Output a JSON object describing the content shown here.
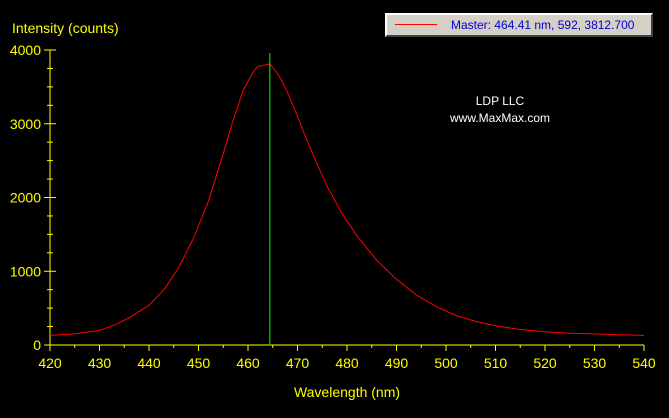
{
  "chart_data": {
    "type": "line",
    "title": "",
    "xlabel": "Wavelength (nm)",
    "ylabel": "Intensity (counts)",
    "xlim": [
      420,
      540
    ],
    "ylim": [
      0,
      4000
    ],
    "x_ticks": [
      420,
      430,
      440,
      450,
      460,
      470,
      480,
      490,
      500,
      510,
      520,
      530,
      540
    ],
    "y_ticks": [
      0,
      1000,
      2000,
      3000,
      4000
    ],
    "grid": false,
    "series": [
      {
        "name": "Master",
        "color": "#FF0000",
        "x": [
          420,
          425,
          430,
          433,
          436,
          440,
          443,
          446,
          449,
          452,
          455,
          457,
          459,
          461,
          462,
          463,
          464.41,
          465,
          466,
          467,
          468,
          470,
          472,
          474,
          476,
          479,
          482,
          486,
          490,
          494,
          498,
          502,
          506,
          510,
          515,
          520,
          525,
          530,
          535,
          540
        ],
        "y": [
          130,
          150,
          200,
          270,
          370,
          540,
          750,
          1050,
          1450,
          1950,
          2600,
          3050,
          3450,
          3700,
          3780,
          3790,
          3812.7,
          3760,
          3680,
          3560,
          3420,
          3100,
          2760,
          2450,
          2150,
          1780,
          1480,
          1150,
          890,
          680,
          520,
          400,
          320,
          260,
          210,
          180,
          160,
          150,
          140,
          130
        ]
      }
    ],
    "cursor": {
      "x": 464.41,
      "color": "#00FF00"
    },
    "axis_color": "#FFFF00",
    "annotations": [
      "LDP LLC",
      "www.MaxMax.com"
    ],
    "legend": {
      "placement": "top-right",
      "text": "Master: 464.41 nm, 592, 3812.700"
    }
  }
}
